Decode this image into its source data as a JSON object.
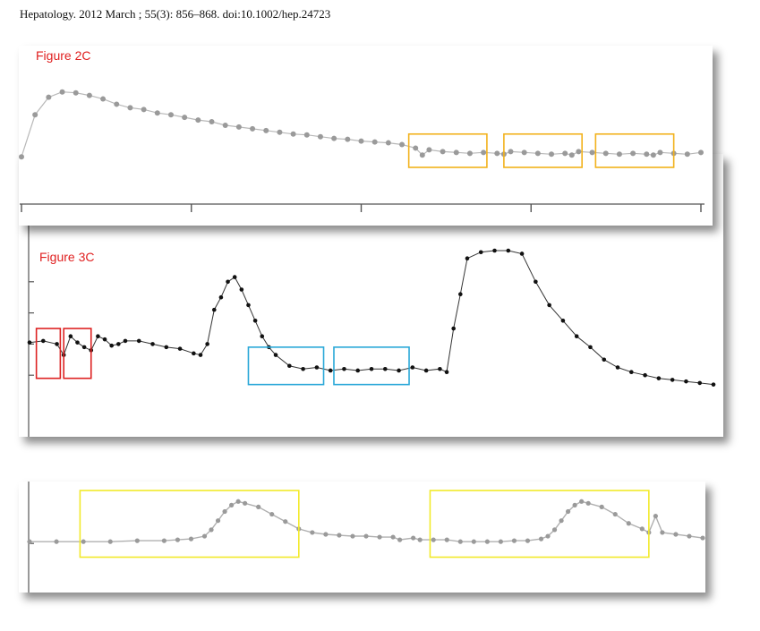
{
  "citation": "Hepatology.  2012 March ; 55(3): 856–868. doi:10.1002/hep.24723",
  "colors": {
    "label_red": "#e02020",
    "box_orange": "#f2b21c",
    "box_red": "#dd2222",
    "box_blue": "#2aa8d8",
    "box_yellow": "#f2ea2a",
    "trace_gray": "#9a9a9a",
    "trace_black": "#111111"
  },
  "chart_data": [
    {
      "type": "line",
      "figure_label": "Figure 2C",
      "xlim": [
        0,
        100
      ],
      "ylim": [
        0,
        100
      ],
      "x_ticks": [
        0,
        25,
        50,
        75,
        100
      ],
      "points": [
        [
          0,
          12
        ],
        [
          2,
          60
        ],
        [
          4,
          80
        ],
        [
          6,
          86
        ],
        [
          8,
          85
        ],
        [
          10,
          82
        ],
        [
          12,
          78
        ],
        [
          14,
          72
        ],
        [
          16,
          68
        ],
        [
          18,
          66
        ],
        [
          20,
          62
        ],
        [
          22,
          60
        ],
        [
          24,
          57
        ],
        [
          26,
          54
        ],
        [
          28,
          52
        ],
        [
          30,
          48
        ],
        [
          32,
          46
        ],
        [
          34,
          44
        ],
        [
          36,
          42
        ],
        [
          38,
          40
        ],
        [
          40,
          38
        ],
        [
          42,
          37
        ],
        [
          44,
          35
        ],
        [
          46,
          33
        ],
        [
          48,
          32
        ],
        [
          50,
          30
        ],
        [
          52,
          29
        ],
        [
          54,
          28
        ],
        [
          56,
          26
        ],
        [
          58,
          22
        ],
        [
          59,
          14
        ],
        [
          60,
          20
        ],
        [
          62,
          18
        ],
        [
          64,
          17
        ],
        [
          66,
          16
        ],
        [
          68,
          17
        ],
        [
          70,
          16
        ],
        [
          71,
          15
        ],
        [
          72,
          18
        ],
        [
          74,
          17
        ],
        [
          76,
          16
        ],
        [
          78,
          15
        ],
        [
          80,
          16
        ],
        [
          81,
          14
        ],
        [
          82,
          18
        ],
        [
          84,
          17
        ],
        [
          86,
          16
        ],
        [
          88,
          15
        ],
        [
          90,
          16
        ],
        [
          92,
          15
        ],
        [
          93,
          14
        ],
        [
          94,
          17
        ],
        [
          96,
          16
        ],
        [
          98,
          15
        ],
        [
          100,
          17
        ]
      ],
      "highlight_boxes": [
        {
          "color": "orange",
          "x": [
            57,
            68.5
          ],
          "y": [
            0,
            38
          ]
        },
        {
          "color": "orange",
          "x": [
            71,
            82.5
          ],
          "y": [
            0,
            38
          ]
        },
        {
          "color": "orange",
          "x": [
            84.5,
            96
          ],
          "y": [
            0,
            38
          ]
        }
      ]
    },
    {
      "type": "line",
      "figure_label": "Figure 3C",
      "xlim": [
        0,
        100
      ],
      "ylim": [
        0,
        100
      ],
      "y_ticks": [
        20,
        40,
        60,
        80
      ],
      "points": [
        [
          0,
          41
        ],
        [
          2,
          42
        ],
        [
          4,
          40
        ],
        [
          5,
          33
        ],
        [
          6,
          45
        ],
        [
          7,
          41
        ],
        [
          8,
          38
        ],
        [
          9,
          36
        ],
        [
          10,
          45
        ],
        [
          11,
          43
        ],
        [
          12,
          39
        ],
        [
          13,
          40
        ],
        [
          14,
          42
        ],
        [
          16,
          42
        ],
        [
          18,
          40
        ],
        [
          20,
          38
        ],
        [
          22,
          37
        ],
        [
          24,
          34
        ],
        [
          25,
          33
        ],
        [
          26,
          40
        ],
        [
          27,
          62
        ],
        [
          28,
          70
        ],
        [
          29,
          80
        ],
        [
          30,
          83
        ],
        [
          31,
          75
        ],
        [
          32,
          65
        ],
        [
          33,
          55
        ],
        [
          34,
          45
        ],
        [
          35,
          38
        ],
        [
          36,
          33
        ],
        [
          38,
          26
        ],
        [
          40,
          24
        ],
        [
          42,
          25
        ],
        [
          44,
          23
        ],
        [
          46,
          24
        ],
        [
          48,
          23
        ],
        [
          50,
          24
        ],
        [
          52,
          24
        ],
        [
          54,
          23
        ],
        [
          56,
          25
        ],
        [
          58,
          23
        ],
        [
          60,
          24
        ],
        [
          61,
          22
        ],
        [
          62,
          50
        ],
        [
          63,
          72
        ],
        [
          64,
          95
        ],
        [
          66,
          99
        ],
        [
          68,
          100
        ],
        [
          70,
          100
        ],
        [
          72,
          98
        ],
        [
          74,
          80
        ],
        [
          76,
          65
        ],
        [
          78,
          55
        ],
        [
          80,
          45
        ],
        [
          82,
          38
        ],
        [
          84,
          30
        ],
        [
          86,
          25
        ],
        [
          88,
          22
        ],
        [
          90,
          20
        ],
        [
          92,
          18
        ],
        [
          94,
          17
        ],
        [
          96,
          16
        ],
        [
          98,
          15
        ],
        [
          100,
          14
        ]
      ],
      "highlight_boxes": [
        {
          "color": "red",
          "x": [
            1,
            4.5
          ],
          "y": [
            18,
            50
          ]
        },
        {
          "color": "red",
          "x": [
            5,
            9
          ],
          "y": [
            18,
            50
          ]
        },
        {
          "color": "blue",
          "x": [
            32,
            43
          ],
          "y": [
            14,
            38
          ]
        },
        {
          "color": "blue",
          "x": [
            44.5,
            55.5
          ],
          "y": [
            14,
            38
          ]
        }
      ]
    },
    {
      "type": "line",
      "figure_label": "",
      "xlim": [
        0,
        100
      ],
      "ylim": [
        0,
        100
      ],
      "y_ticks": [
        40
      ],
      "points": [
        [
          0,
          42
        ],
        [
          4,
          42
        ],
        [
          8,
          42
        ],
        [
          12,
          42
        ],
        [
          16,
          43
        ],
        [
          20,
          43
        ],
        [
          22,
          44
        ],
        [
          24,
          45
        ],
        [
          26,
          48
        ],
        [
          27,
          55
        ],
        [
          28,
          65
        ],
        [
          29,
          75
        ],
        [
          30,
          82
        ],
        [
          31,
          86
        ],
        [
          32,
          84
        ],
        [
          34,
          80
        ],
        [
          36,
          72
        ],
        [
          38,
          64
        ],
        [
          40,
          56
        ],
        [
          42,
          52
        ],
        [
          44,
          50
        ],
        [
          46,
          49
        ],
        [
          48,
          48
        ],
        [
          50,
          48
        ],
        [
          52,
          47
        ],
        [
          54,
          47
        ],
        [
          55,
          44
        ],
        [
          57,
          46
        ],
        [
          58,
          44
        ],
        [
          60,
          44
        ],
        [
          62,
          44
        ],
        [
          64,
          42
        ],
        [
          66,
          42
        ],
        [
          68,
          42
        ],
        [
          70,
          42
        ],
        [
          72,
          43
        ],
        [
          74,
          43
        ],
        [
          76,
          45
        ],
        [
          77,
          48
        ],
        [
          78,
          55
        ],
        [
          79,
          65
        ],
        [
          80,
          75
        ],
        [
          81,
          82
        ],
        [
          82,
          86
        ],
        [
          83,
          84
        ],
        [
          85,
          80
        ],
        [
          87,
          72
        ],
        [
          89,
          62
        ],
        [
          91,
          56
        ],
        [
          92,
          52
        ],
        [
          93,
          70
        ],
        [
          94,
          52
        ],
        [
          96,
          50
        ],
        [
          98,
          48
        ],
        [
          100,
          46
        ]
      ],
      "highlight_boxes": [
        {
          "color": "yellow",
          "x": [
            7.5,
            40
          ],
          "y": [
            25,
            98
          ]
        },
        {
          "color": "yellow",
          "x": [
            59.5,
            92
          ],
          "y": [
            25,
            98
          ]
        }
      ]
    }
  ]
}
